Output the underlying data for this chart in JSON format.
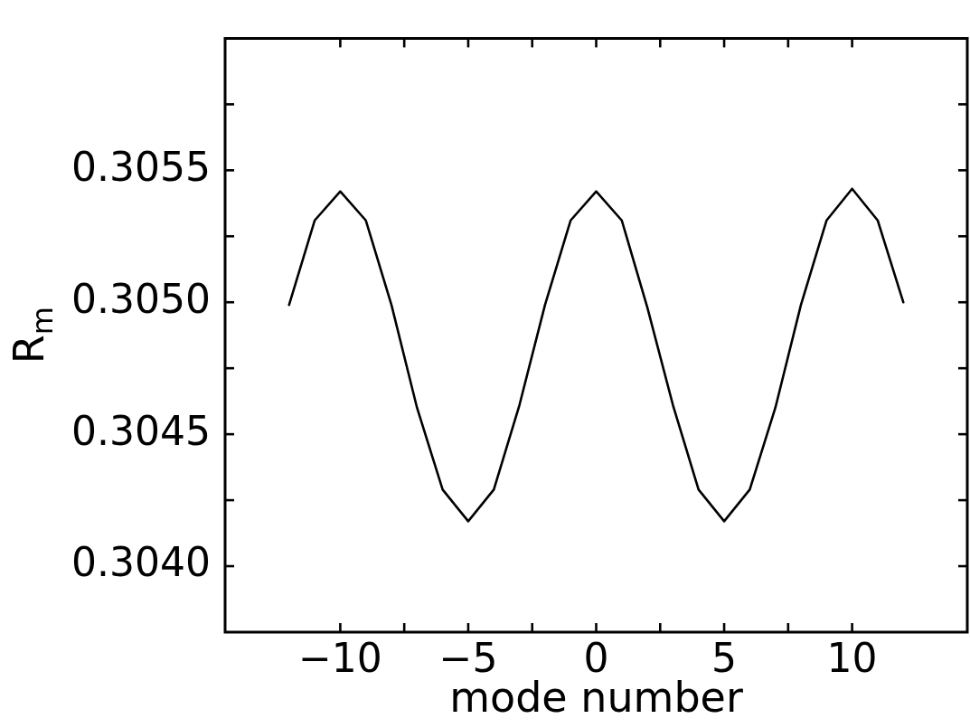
{
  "chart_data": {
    "type": "line",
    "xlabel": "mode number",
    "ylabel": "R$_{m}$",
    "x": [
      -12,
      -11,
      -10,
      -9,
      -8,
      -7,
      -6,
      -5,
      -4,
      -3,
      -2,
      -1,
      0,
      1,
      2,
      3,
      4,
      5,
      6,
      7,
      8,
      9,
      10,
      11,
      12
    ],
    "series": [
      {
        "color": "#000000",
        "values": [
          0.30499,
          0.30531,
          0.30542,
          0.30531,
          0.30499,
          0.3046,
          0.30429,
          0.30417,
          0.30429,
          0.30461,
          0.30499,
          0.30531,
          0.30542,
          0.30531,
          0.30498,
          0.30461,
          0.30429,
          0.30417,
          0.30429,
          0.3046,
          0.30499,
          0.30531,
          0.30543,
          0.30531,
          0.305
        ]
      }
    ],
    "xlim": [
      -14.5,
      14.5
    ],
    "ylim": [
      0.30375,
      0.306
    ],
    "xticks": [
      -10,
      {
        "value": -7.5,
        "label": null
      },
      -5,
      {
        "value": -2.5,
        "label": null
      },
      0,
      {
        "value": 2.5,
        "label": null
      },
      5,
      {
        "value": 7.5,
        "label": null
      },
      10
    ],
    "yticks": [
      {
        "value": 0.304,
        "label": "0.3040"
      },
      {
        "value": 0.30425,
        "label": null
      },
      0.3045,
      {
        "value": 0.30475,
        "label": null
      },
      {
        "value": 0.305,
        "label": "0.3050"
      },
      {
        "value": 0.30525,
        "label": null
      },
      0.3055,
      {
        "value": 0.30575,
        "label": null
      }
    ]
  }
}
